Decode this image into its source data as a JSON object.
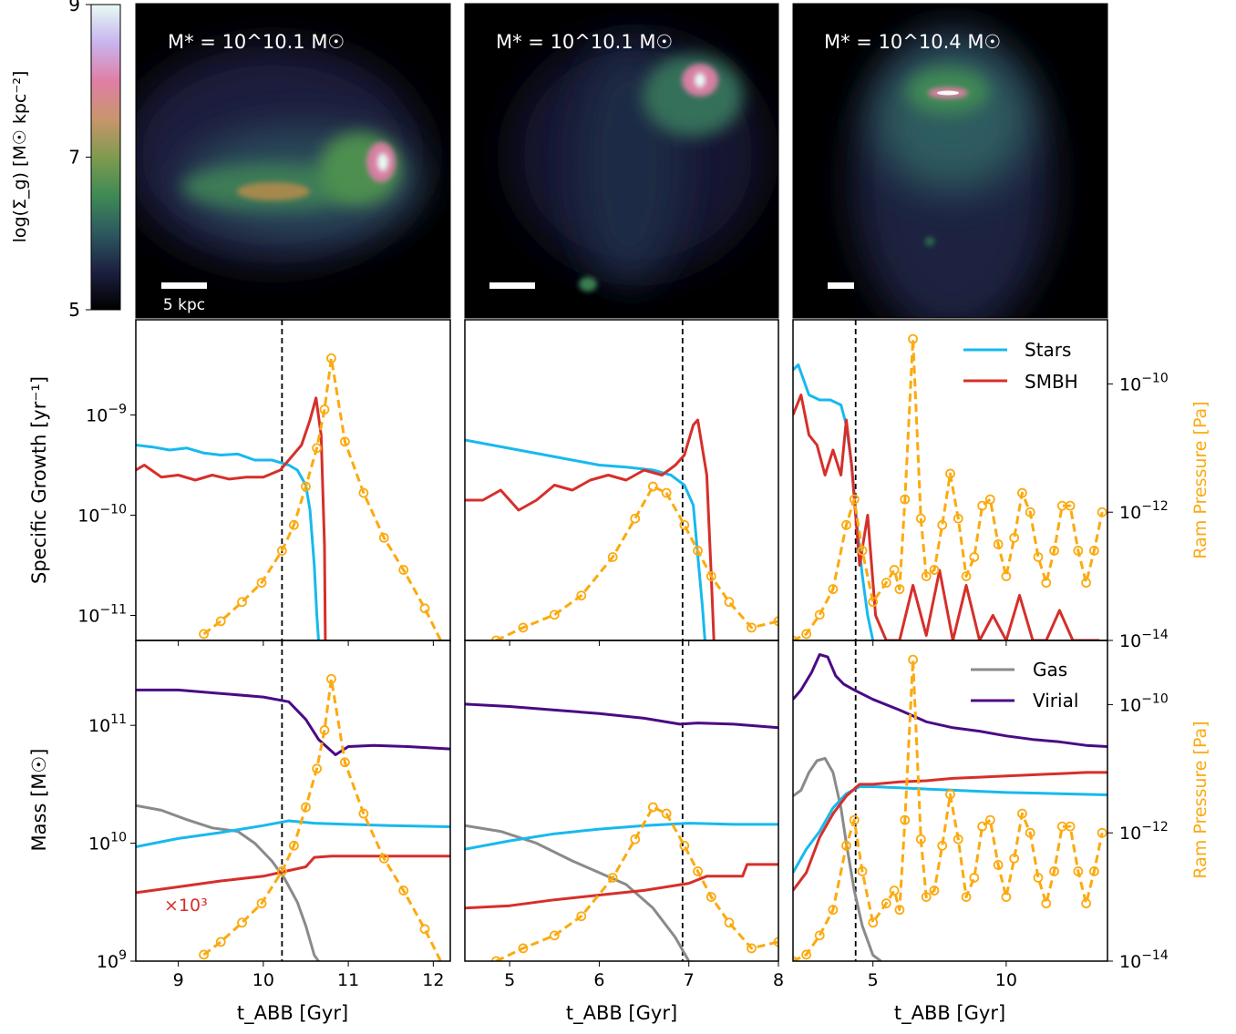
{
  "colorbar": {
    "label": "log(Σ_g) [M☉ kpc⁻²]",
    "ticks": [
      "9",
      "7",
      "5"
    ],
    "stops": [
      "#000000",
      "#1c2040",
      "#2e5860",
      "#3f8a55",
      "#7f9b4e",
      "#c8956c",
      "#e07fa6",
      "#c8b4ee",
      "#e8fbf4"
    ]
  },
  "images": [
    {
      "mass_label": "M* = 10^10.1 M☉",
      "scale_text": "5 kpc"
    },
    {
      "mass_label": "M* = 10^10.1 M☉",
      "scale_text": ""
    },
    {
      "mass_label": "M* = 10^10.4 M☉",
      "scale_text": ""
    }
  ],
  "colors": {
    "stars": "#17b9ee",
    "smbh": "#d62f2b",
    "gas": "#8a8a8a",
    "virial": "#4b0a85",
    "ram": "#fbaa10"
  },
  "legends": {
    "growth": [
      "Stars",
      "SMBH"
    ],
    "mass": [
      "Gas",
      "Virial"
    ]
  },
  "labels": {
    "xlabel": "t_ABB [Gyr]",
    "ylabel_growth": "Specific Growth [yr⁻¹]",
    "ylabel_mass": "Mass [M☉]",
    "ylabel_ram": "Ram Pressure [Pa]",
    "smbh_factor": "×10³"
  },
  "chart_data": [
    {
      "type": "line",
      "panel": "growth-1",
      "xlim": [
        8.5,
        12.2
      ],
      "xticks": [
        9,
        10,
        11,
        12
      ],
      "ylim_log": [
        -11.25,
        -8.05
      ],
      "ram_ylim_log": [
        -14,
        -9
      ],
      "vline": 10.22,
      "series": [
        {
          "name": "Stars",
          "x": [
            8.5,
            8.7,
            8.9,
            9.1,
            9.3,
            9.5,
            9.7,
            9.9,
            10.1,
            10.3,
            10.4,
            10.5,
            10.55,
            10.6,
            10.63,
            10.65
          ],
          "y": [
            -9.3,
            -9.32,
            -9.35,
            -9.33,
            -9.38,
            -9.4,
            -9.39,
            -9.45,
            -9.45,
            -9.5,
            -9.55,
            -9.7,
            -9.95,
            -10.5,
            -11.0,
            -11.25
          ]
        },
        {
          "name": "SMBH",
          "x": [
            8.5,
            8.6,
            8.8,
            9.0,
            9.2,
            9.4,
            9.6,
            9.8,
            10.0,
            10.2,
            10.3,
            10.45,
            10.55,
            10.62,
            10.68,
            10.72,
            10.73
          ],
          "y": [
            -9.55,
            -9.5,
            -9.62,
            -9.6,
            -9.65,
            -9.6,
            -9.64,
            -9.62,
            -9.62,
            -9.55,
            -9.45,
            -9.3,
            -9.05,
            -8.83,
            -9.2,
            -10.3,
            -11.25
          ]
        },
        {
          "name": "Ram Pressure",
          "x": [
            9.3,
            9.5,
            9.75,
            9.98,
            10.22,
            10.36,
            10.5,
            10.63,
            10.72,
            10.8,
            10.96,
            11.18,
            11.42,
            11.65,
            11.9,
            12.2
          ],
          "y": [
            -13.9,
            -13.7,
            -13.4,
            -13.1,
            -12.6,
            -12.2,
            -11.6,
            -11.0,
            -10.4,
            -9.6,
            -10.9,
            -11.7,
            -12.4,
            -12.9,
            -13.5,
            -14.3
          ]
        }
      ]
    },
    {
      "type": "line",
      "panel": "growth-2",
      "xlim": [
        4.5,
        8.0
      ],
      "xticks": [
        5,
        6,
        7,
        8
      ],
      "ylim_log": [
        -11.25,
        -8.05
      ],
      "ram_ylim_log": [
        -14,
        -9
      ],
      "vline": 6.93,
      "series": [
        {
          "name": "Stars",
          "x": [
            4.5,
            4.8,
            5.1,
            5.4,
            5.7,
            6.0,
            6.3,
            6.6,
            6.8,
            6.95,
            7.05,
            7.1,
            7.15,
            7.18
          ],
          "y": [
            -9.25,
            -9.3,
            -9.35,
            -9.4,
            -9.45,
            -9.5,
            -9.52,
            -9.55,
            -9.6,
            -9.7,
            -9.9,
            -10.4,
            -10.9,
            -11.25
          ]
        },
        {
          "name": "SMBH",
          "x": [
            4.5,
            4.7,
            4.9,
            5.1,
            5.3,
            5.5,
            5.7,
            5.9,
            6.1,
            6.3,
            6.5,
            6.7,
            6.85,
            6.95,
            7.05,
            7.1,
            7.2,
            7.25,
            7.28
          ],
          "y": [
            -9.85,
            -9.85,
            -9.75,
            -9.95,
            -9.85,
            -9.7,
            -9.75,
            -9.65,
            -9.6,
            -9.65,
            -9.55,
            -9.6,
            -9.5,
            -9.4,
            -9.1,
            -9.05,
            -9.6,
            -10.6,
            -11.25
          ]
        },
        {
          "name": "Ram Pressure",
          "x": [
            4.85,
            5.15,
            5.5,
            5.8,
            6.15,
            6.4,
            6.6,
            6.75,
            6.95,
            7.1,
            7.25,
            7.45,
            7.7,
            8.0
          ],
          "y": [
            -14,
            -13.8,
            -13.6,
            -13.3,
            -12.7,
            -12.1,
            -11.6,
            -11.7,
            -12.2,
            -12.6,
            -13.0,
            -13.4,
            -13.8,
            -13.7
          ]
        }
      ]
    },
    {
      "type": "line",
      "panel": "growth-3",
      "xlim": [
        2.0,
        13.8
      ],
      "xticks": [
        5,
        10
      ],
      "ylim_log": [
        -11.25,
        -8.05
      ],
      "ram_ylim_log": [
        -14,
        -9
      ],
      "vline": 4.35,
      "series": [
        {
          "name": "Stars",
          "x": [
            2.0,
            2.2,
            2.6,
            3.0,
            3.4,
            3.8,
            4.0,
            4.2,
            4.4,
            4.6,
            4.8,
            5.0
          ],
          "y": [
            -8.55,
            -8.5,
            -8.8,
            -8.85,
            -8.85,
            -8.9,
            -9.1,
            -9.5,
            -10.1,
            -10.6,
            -11.0,
            -11.25
          ]
        },
        {
          "name": "SMBH",
          "x": [
            2.0,
            2.3,
            2.6,
            2.9,
            3.2,
            3.5,
            3.8,
            4.0,
            4.2,
            4.5,
            4.8,
            5.1,
            5.5,
            6.0,
            6.5,
            7.0,
            7.5,
            8.0,
            8.5,
            9.0,
            9.5,
            10.0,
            10.5,
            11.0,
            11.5,
            12.0,
            12.5,
            13.0,
            13.5
          ],
          "y": [
            -9.0,
            -8.8,
            -9.2,
            -9.3,
            -9.6,
            -9.35,
            -9.6,
            -9.05,
            -9.5,
            -10.5,
            -10.0,
            -11.0,
            -11.25,
            -11.25,
            -10.7,
            -11.2,
            -10.55,
            -11.25,
            -10.7,
            -11.25,
            -11.0,
            -11.25,
            -10.8,
            -11.25,
            -11.25,
            -10.95,
            -11.25,
            -11.25,
            -11.25
          ]
        },
        {
          "name": "Ram Pressure",
          "x": [
            2.0,
            2.5,
            3.0,
            3.5,
            4.0,
            4.3,
            4.6,
            5.0,
            5.5,
            5.8,
            6.0,
            6.2,
            6.5,
            6.8,
            7.0,
            7.3,
            7.6,
            7.9,
            8.2,
            8.5,
            8.8,
            9.1,
            9.4,
            9.7,
            10.0,
            10.3,
            10.6,
            10.9,
            11.2,
            11.5,
            11.8,
            12.1,
            12.4,
            12.7,
            13.0,
            13.3,
            13.6
          ],
          "y": [
            -14.0,
            -13.9,
            -13.6,
            -13.2,
            -12.2,
            -11.8,
            -12.6,
            -13.4,
            -13.1,
            -12.9,
            -13.2,
            -11.8,
            -9.3,
            -12.1,
            -13.0,
            -12.9,
            -12.2,
            -11.4,
            -12.1,
            -13.0,
            -12.7,
            -11.9,
            -11.8,
            -12.5,
            -13.0,
            -12.4,
            -11.7,
            -12.0,
            -12.7,
            -13.1,
            -12.6,
            -11.9,
            -11.9,
            -12.6,
            -13.1,
            -12.6,
            -12.0
          ]
        }
      ]
    },
    {
      "type": "line",
      "panel": "mass-1",
      "xlim": [
        8.5,
        12.2
      ],
      "xticks": [
        9,
        10,
        11,
        12
      ],
      "ylim_log": [
        9.0,
        11.72
      ],
      "ram_ylim_log": [
        -14,
        -9
      ],
      "yticks": [
        9,
        10,
        11
      ],
      "vline": 10.22,
      "series": [
        {
          "name": "Virial",
          "x": [
            8.5,
            9.0,
            9.5,
            10.0,
            10.3,
            10.5,
            10.65,
            10.85,
            11.0,
            11.3,
            11.7,
            12.2
          ],
          "y": [
            11.3,
            11.3,
            11.27,
            11.24,
            11.2,
            11.05,
            10.88,
            10.75,
            10.82,
            10.83,
            10.82,
            10.8
          ]
        },
        {
          "name": "Gas",
          "x": [
            8.5,
            8.8,
            9.1,
            9.4,
            9.7,
            9.9,
            10.1,
            10.25,
            10.4,
            10.5,
            10.6,
            10.65
          ],
          "y": [
            10.32,
            10.28,
            10.2,
            10.13,
            10.1,
            10.0,
            9.85,
            9.7,
            9.5,
            9.3,
            9.05,
            9.0
          ]
        },
        {
          "name": "Stars",
          "x": [
            8.5,
            9.0,
            9.5,
            10.0,
            10.3,
            10.6,
            11.0,
            11.5,
            12.2
          ],
          "y": [
            9.97,
            10.04,
            10.09,
            10.15,
            10.19,
            10.17,
            10.16,
            10.15,
            10.14
          ]
        },
        {
          "name": "SMBH",
          "x": [
            8.5,
            9.0,
            9.5,
            10.0,
            10.25,
            10.5,
            10.6,
            10.8,
            11.2,
            11.7,
            12.2
          ],
          "y": [
            9.58,
            9.63,
            9.68,
            9.72,
            9.76,
            9.8,
            9.88,
            9.89,
            9.89,
            9.89,
            9.89
          ]
        },
        {
          "name": "Ram Pressure",
          "x": [
            9.3,
            9.5,
            9.75,
            9.98,
            10.22,
            10.36,
            10.5,
            10.63,
            10.72,
            10.8,
            10.96,
            11.18,
            11.42,
            11.65,
            11.9,
            12.2
          ],
          "y": [
            -13.9,
            -13.7,
            -13.4,
            -13.1,
            -12.6,
            -12.2,
            -11.6,
            -11.0,
            -10.4,
            -9.6,
            -10.9,
            -11.7,
            -12.4,
            -12.9,
            -13.5,
            -14.3
          ]
        }
      ]
    },
    {
      "type": "line",
      "panel": "mass-2",
      "xlim": [
        4.5,
        8.0
      ],
      "xticks": [
        5,
        6,
        7,
        8
      ],
      "ylim_log": [
        9.0,
        11.72
      ],
      "ram_ylim_log": [
        -14,
        -9
      ],
      "yticks": [],
      "vline": 6.93,
      "series": [
        {
          "name": "Virial",
          "x": [
            4.5,
            5.0,
            5.5,
            6.0,
            6.5,
            6.9,
            7.1,
            7.5,
            8.0
          ],
          "y": [
            11.18,
            11.16,
            11.13,
            11.1,
            11.06,
            11.01,
            11.02,
            11.01,
            10.98
          ]
        },
        {
          "name": "Gas",
          "x": [
            4.5,
            4.9,
            5.3,
            5.7,
            6.0,
            6.3,
            6.6,
            6.85,
            7.0
          ],
          "y": [
            10.15,
            10.1,
            10.0,
            9.85,
            9.75,
            9.65,
            9.45,
            9.2,
            9.0
          ]
        },
        {
          "name": "Stars",
          "x": [
            4.5,
            5.0,
            5.5,
            6.0,
            6.5,
            7.0,
            7.5,
            8.0
          ],
          "y": [
            9.95,
            10.02,
            10.08,
            10.12,
            10.15,
            10.17,
            10.16,
            10.16
          ]
        },
        {
          "name": "SMBH",
          "x": [
            4.5,
            5.0,
            5.5,
            6.0,
            6.5,
            7.0,
            7.2,
            7.6,
            7.65,
            8.0
          ],
          "y": [
            9.45,
            9.47,
            9.52,
            9.56,
            9.6,
            9.66,
            9.72,
            9.72,
            9.82,
            9.82
          ]
        },
        {
          "name": "Ram Pressure",
          "x": [
            4.85,
            5.15,
            5.5,
            5.8,
            6.15,
            6.4,
            6.6,
            6.75,
            6.95,
            7.1,
            7.25,
            7.45,
            7.7,
            8.0
          ],
          "y": [
            -14,
            -13.8,
            -13.6,
            -13.3,
            -12.7,
            -12.1,
            -11.6,
            -11.7,
            -12.2,
            -12.6,
            -13.0,
            -13.4,
            -13.8,
            -13.7
          ]
        }
      ]
    },
    {
      "type": "line",
      "panel": "mass-3",
      "xlim": [
        2.0,
        13.8
      ],
      "xticks": [
        5,
        10
      ],
      "ylim_log": [
        9.0,
        11.72
      ],
      "ram_ylim_log": [
        -14,
        -9
      ],
      "yticks": [],
      "vline": 4.35,
      "series": [
        {
          "name": "Virial",
          "x": [
            2.0,
            2.3,
            2.7,
            3.0,
            3.3,
            3.6,
            3.9,
            4.3,
            5.0,
            6.0,
            7.0,
            8.0,
            9.0,
            10.0,
            11.0,
            12.0,
            13.0,
            13.8
          ],
          "y": [
            11.22,
            11.3,
            11.45,
            11.6,
            11.58,
            11.42,
            11.35,
            11.3,
            11.22,
            11.13,
            11.03,
            10.98,
            10.95,
            10.91,
            10.88,
            10.86,
            10.83,
            10.82
          ]
        },
        {
          "name": "Gas",
          "x": [
            2.0,
            2.3,
            2.6,
            2.9,
            3.2,
            3.5,
            3.8,
            4.0,
            4.3,
            4.6,
            5.0,
            5.3
          ],
          "y": [
            10.4,
            10.45,
            10.6,
            10.7,
            10.72,
            10.6,
            10.3,
            10.0,
            9.6,
            9.3,
            9.05,
            9.0
          ]
        },
        {
          "name": "Stars",
          "x": [
            2.0,
            2.5,
            3.0,
            3.5,
            4.0,
            4.5,
            5.0,
            6.0,
            8.0,
            10.0,
            12.0,
            13.8
          ],
          "y": [
            9.75,
            9.95,
            10.1,
            10.3,
            10.42,
            10.48,
            10.48,
            10.47,
            10.45,
            10.43,
            10.42,
            10.41
          ]
        },
        {
          "name": "SMBH",
          "x": [
            2.0,
            2.5,
            3.0,
            3.5,
            4.0,
            4.5,
            5.0,
            6.0,
            7.0,
            8.0,
            9.0,
            10.0,
            11.0,
            12.0,
            13.0,
            13.8
          ],
          "y": [
            9.6,
            9.75,
            10.05,
            10.25,
            10.4,
            10.5,
            10.5,
            10.52,
            10.53,
            10.55,
            10.56,
            10.57,
            10.58,
            10.59,
            10.6,
            10.6
          ]
        },
        {
          "name": "Ram Pressure",
          "x": [
            2.0,
            2.5,
            3.0,
            3.5,
            4.0,
            4.3,
            4.6,
            5.0,
            5.5,
            5.8,
            6.0,
            6.2,
            6.5,
            6.8,
            7.0,
            7.3,
            7.6,
            7.9,
            8.2,
            8.5,
            8.8,
            9.1,
            9.4,
            9.7,
            10.0,
            10.3,
            10.6,
            10.9,
            11.2,
            11.5,
            11.8,
            12.1,
            12.4,
            12.7,
            13.0,
            13.3,
            13.6
          ],
          "y": [
            -14.0,
            -13.9,
            -13.6,
            -13.2,
            -12.2,
            -11.8,
            -12.6,
            -13.4,
            -13.1,
            -12.9,
            -13.2,
            -11.8,
            -9.3,
            -12.1,
            -13.0,
            -12.9,
            -12.2,
            -11.4,
            -12.1,
            -13.0,
            -12.7,
            -11.9,
            -11.8,
            -12.5,
            -13.0,
            -12.4,
            -11.7,
            -12.0,
            -12.7,
            -13.1,
            -12.6,
            -11.9,
            -11.9,
            -12.6,
            -13.1,
            -12.6,
            -12.0
          ]
        }
      ]
    }
  ]
}
